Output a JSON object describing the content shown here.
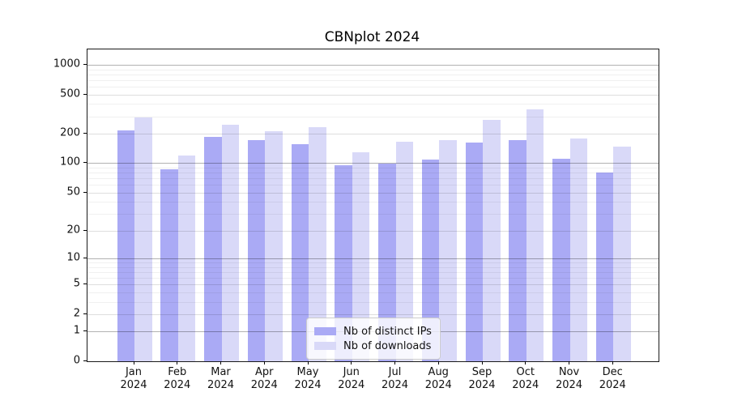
{
  "chart_data": {
    "type": "bar",
    "title": "CBNplot 2024",
    "categories": [
      "Jan",
      "Feb",
      "Mar",
      "Apr",
      "May",
      "Jun",
      "Jul",
      "Aug",
      "Sep",
      "Oct",
      "Nov",
      "Dec"
    ],
    "category_year": "2024",
    "series": [
      {
        "name": "Nb of distinct IPs",
        "color": "#aaaaf5",
        "values": [
          215,
          87,
          185,
          172,
          157,
          95,
          99,
          108,
          162,
          172,
          110,
          81
        ]
      },
      {
        "name": "Nb of downloads",
        "color": "#d9d9f8",
        "values": [
          295,
          120,
          247,
          212,
          233,
          130,
          166,
          172,
          275,
          350,
          177,
          147
        ]
      }
    ],
    "y_axis": {
      "scale": "log1p",
      "tick_labels": [
        0,
        1,
        2,
        5,
        10,
        20,
        50,
        100,
        200,
        500,
        1000
      ],
      "ylim": [
        0,
        1430
      ]
    },
    "x_axis": {
      "label_format": "month-over-year"
    },
    "legend": {
      "position": "lower-center",
      "entries": [
        "Nb of distinct IPs",
        "Nb of downloads"
      ]
    },
    "grid": "both",
    "grid_major_at": [
      1,
      10,
      100,
      1000
    ]
  }
}
